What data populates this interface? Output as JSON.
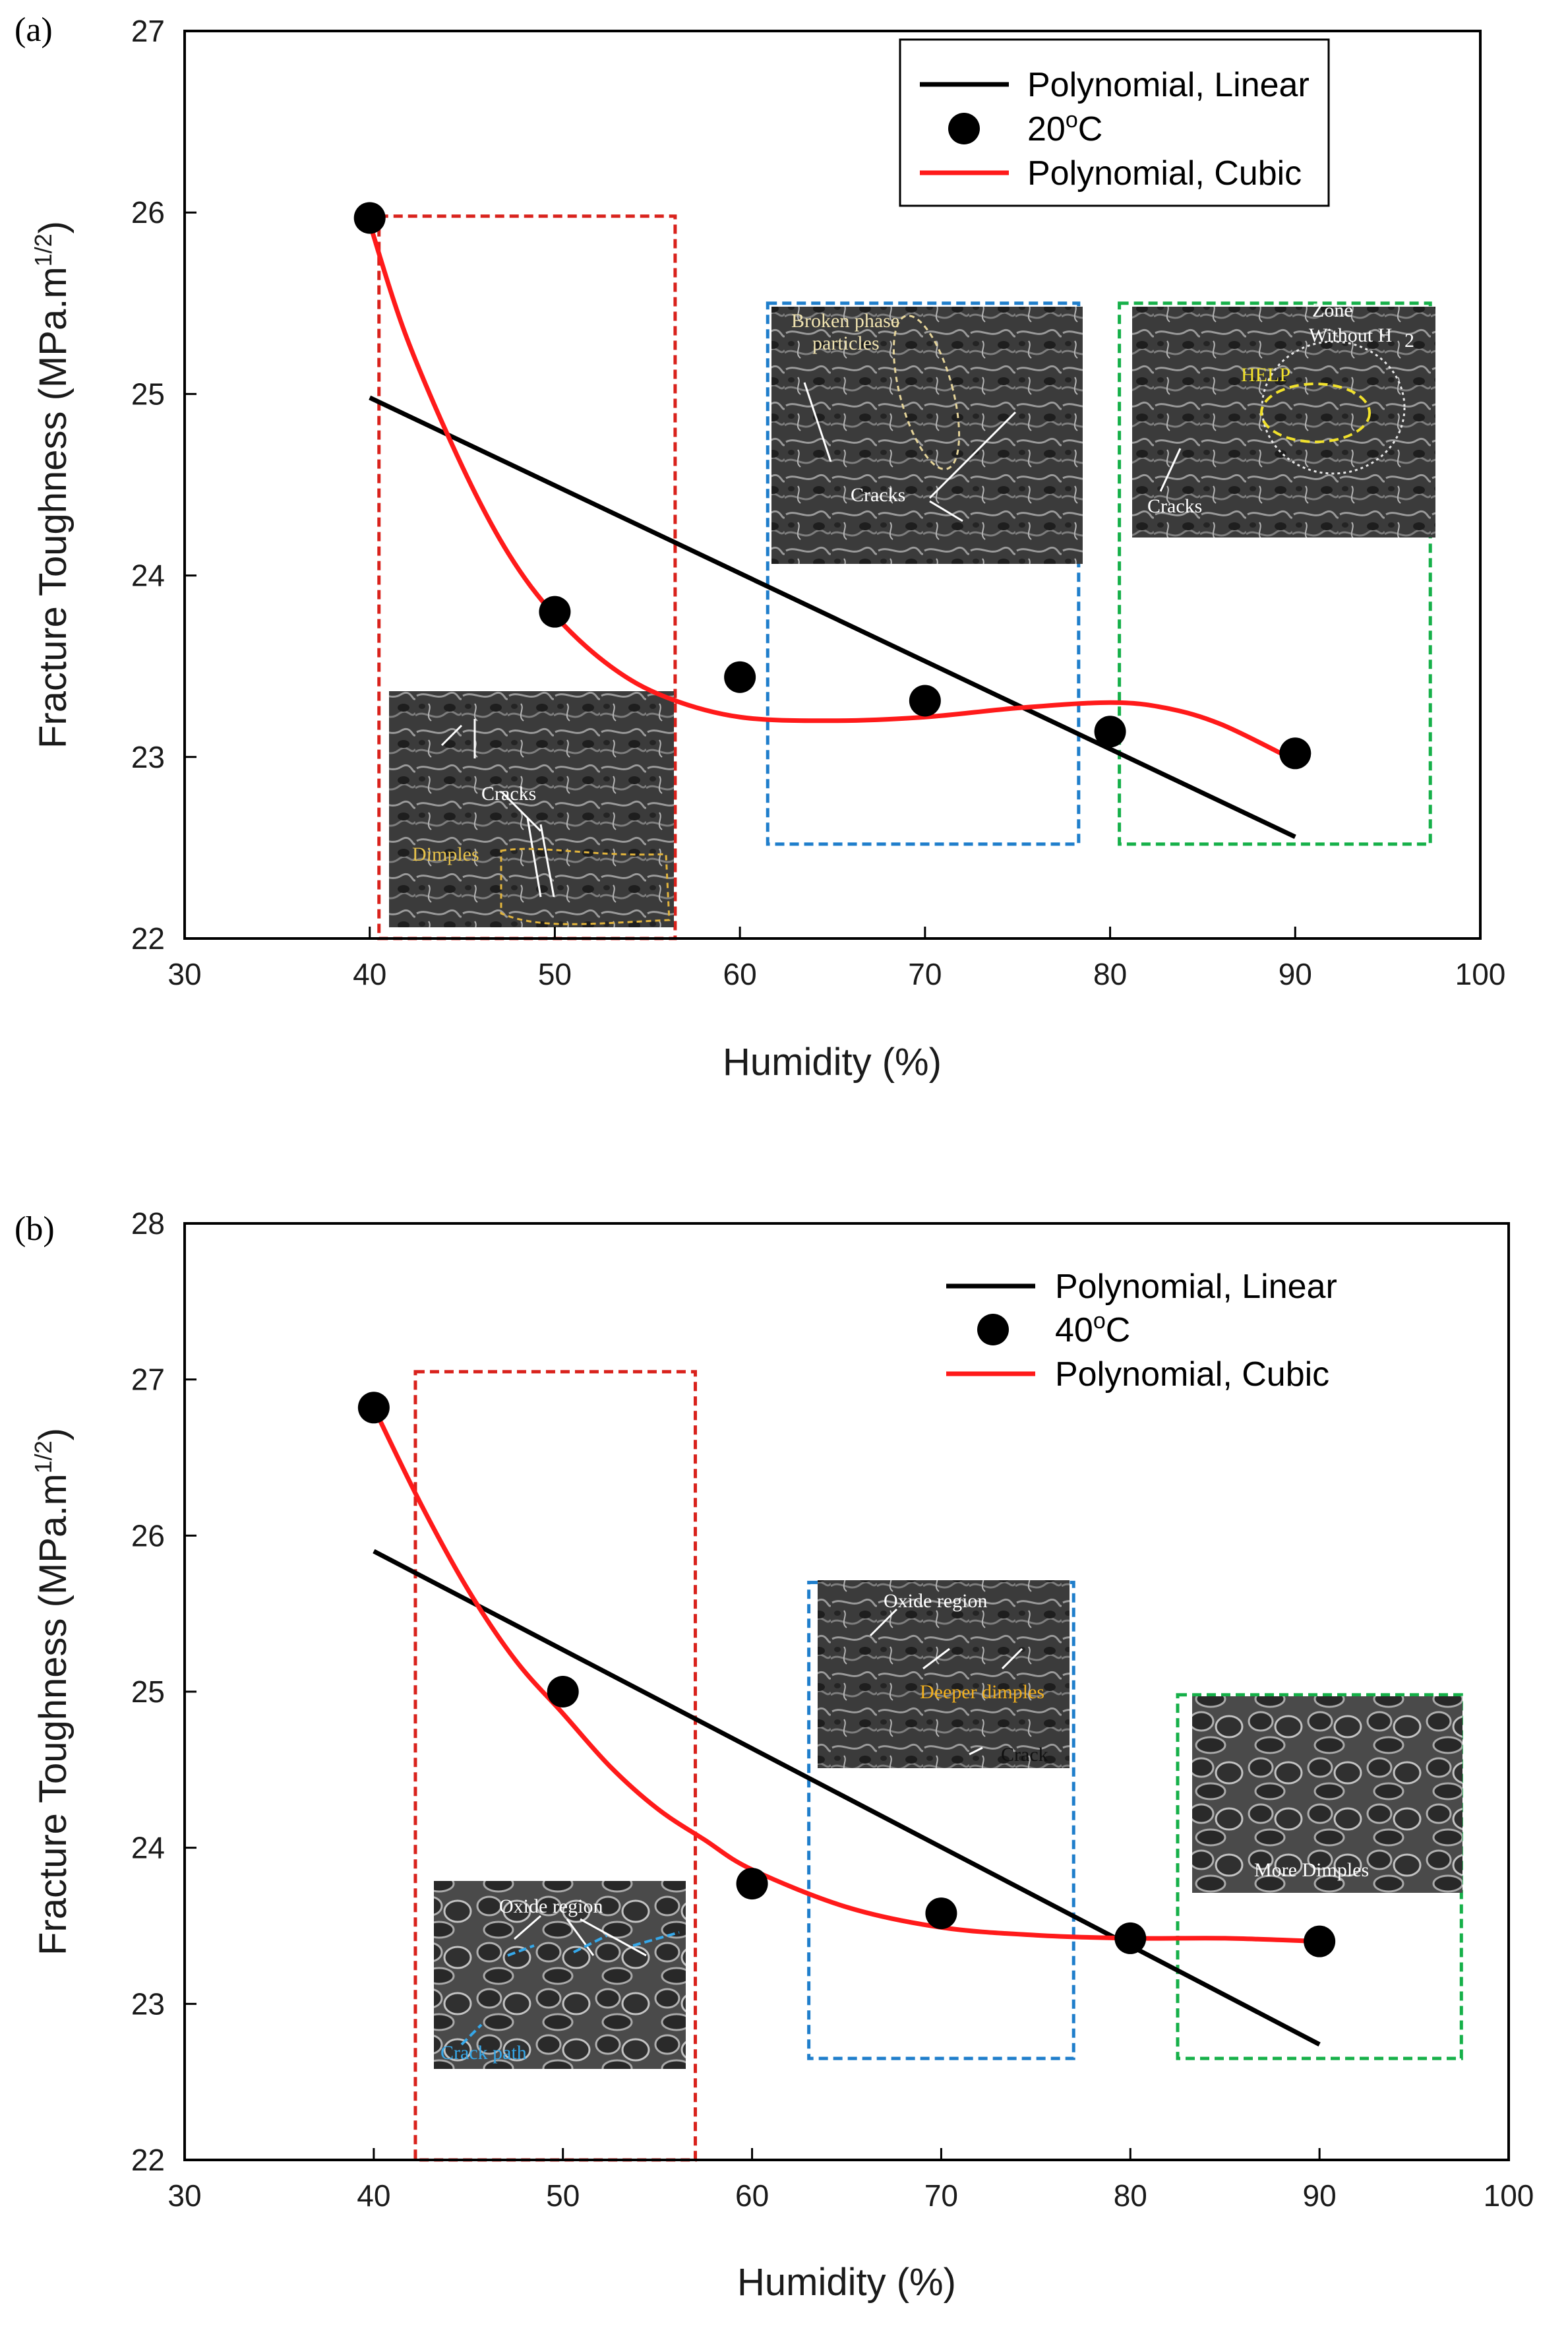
{
  "chart_data": [
    {
      "type": "scatter",
      "panel_label": "(a)",
      "xlabel": "Humidity (%)",
      "ylabel": "Fracture Toughness (MPa.m",
      "ylabel_sup": "1/2",
      "ylabel_close": ")",
      "xlim": [
        30,
        100
      ],
      "ylim": [
        22,
        27
      ],
      "x_ticks": [
        "30",
        "40",
        "50",
        "60",
        "70",
        "80",
        "90",
        "100"
      ],
      "y_ticks": [
        "22",
        "23",
        "24",
        "25",
        "26",
        "27"
      ],
      "series": [
        {
          "name": "20°C",
          "legend_base": "20",
          "legend_sup": "o",
          "legend_unit": "C",
          "kind": "points",
          "color": "#000000",
          "x": [
            40,
            50,
            60,
            70,
            80,
            90
          ],
          "y": [
            25.97,
            23.8,
            23.44,
            23.31,
            23.14,
            23.02
          ]
        },
        {
          "name": "Polynomial, Linear",
          "kind": "fit-linear",
          "color": "#000000",
          "x": [
            40,
            90
          ],
          "y": [
            24.98,
            22.56
          ]
        },
        {
          "name": "Polynomial, Cubic",
          "kind": "fit-cubic",
          "color": "#ff1a1a",
          "x": [
            40,
            42,
            45,
            47.5,
            50,
            53,
            56,
            60,
            65,
            70,
            75,
            80,
            83,
            86,
            90
          ],
          "y": [
            25.94,
            25.31,
            24.6,
            24.12,
            23.78,
            23.5,
            23.33,
            23.22,
            23.2,
            23.22,
            23.27,
            23.3,
            23.27,
            23.18,
            22.98
          ]
        }
      ],
      "legend_order": [
        "Polynomial, Linear",
        "20°C",
        "Polynomial, Cubic"
      ],
      "legend": "top-right",
      "regions": [
        {
          "color": "#d9221c",
          "x": [
            40.5,
            56.5
          ],
          "y": [
            22,
            25.98
          ]
        },
        {
          "color": "#1f7ecb",
          "x": [
            61.5,
            78.3
          ],
          "y": [
            22.52,
            25.5
          ]
        },
        {
          "color": "#16b049",
          "x": [
            80.5,
            97.3
          ],
          "y": [
            22.52,
            25.5
          ]
        }
      ],
      "annotations": [
        "Cracks",
        "Dimples",
        "Broken phase",
        "particles",
        "Cracks",
        "Zone",
        "Without H",
        "2",
        "HELP",
        "Cracks"
      ]
    },
    {
      "type": "scatter",
      "panel_label": "(b)",
      "xlabel": "Humidity (%)",
      "ylabel": "Fracture Toughness (MPa.m",
      "ylabel_sup": "1/2",
      "ylabel_close": ")",
      "xlim": [
        30,
        100
      ],
      "ylim": [
        22,
        28
      ],
      "x_ticks": [
        "30",
        "40",
        "50",
        "60",
        "70",
        "80",
        "90",
        "100"
      ],
      "y_ticks": [
        "22",
        "23",
        "24",
        "25",
        "26",
        "27",
        "28"
      ],
      "series": [
        {
          "name": "40°C",
          "legend_base": "40",
          "legend_sup": "o",
          "legend_unit": "C",
          "kind": "points",
          "color": "#000000",
          "x": [
            40,
            50,
            60,
            70,
            80,
            90
          ],
          "y": [
            26.82,
            25.0,
            23.77,
            23.58,
            23.42,
            23.4
          ]
        },
        {
          "name": "Polynomial, Linear",
          "kind": "fit-linear",
          "color": "#000000",
          "x": [
            40,
            90
          ],
          "y": [
            25.9,
            22.74
          ]
        },
        {
          "name": "Polynomial, Cubic",
          "kind": "fit-cubic",
          "color": "#ff1a1a",
          "x": [
            40,
            42.5,
            45,
            47.5,
            50,
            52.5,
            55,
            57.5,
            60,
            65,
            70,
            75,
            80,
            85,
            90
          ],
          "y": [
            26.82,
            26.2,
            25.65,
            25.2,
            24.86,
            24.52,
            24.25,
            24.05,
            23.86,
            23.62,
            23.49,
            23.44,
            23.42,
            23.42,
            23.4
          ]
        }
      ],
      "legend_order": [
        "Polynomial, Linear",
        "40°C",
        "Polynomial, Cubic"
      ],
      "legend": "top-right",
      "regions": [
        {
          "color": "#d9221c",
          "x": [
            42.2,
            57.0
          ],
          "y": [
            22.0,
            27.05
          ]
        },
        {
          "color": "#1f7ecb",
          "x": [
            63.0,
            77.0
          ],
          "y": [
            22.65,
            25.7
          ]
        },
        {
          "color": "#16b049",
          "x": [
            82.5,
            97.5
          ],
          "y": [
            22.65,
            24.98
          ]
        }
      ],
      "annotations": [
        "Oxide region",
        "Crack path",
        "Oxide region",
        "Deeper dimples",
        "Crack",
        "More Dimples"
      ]
    }
  ]
}
